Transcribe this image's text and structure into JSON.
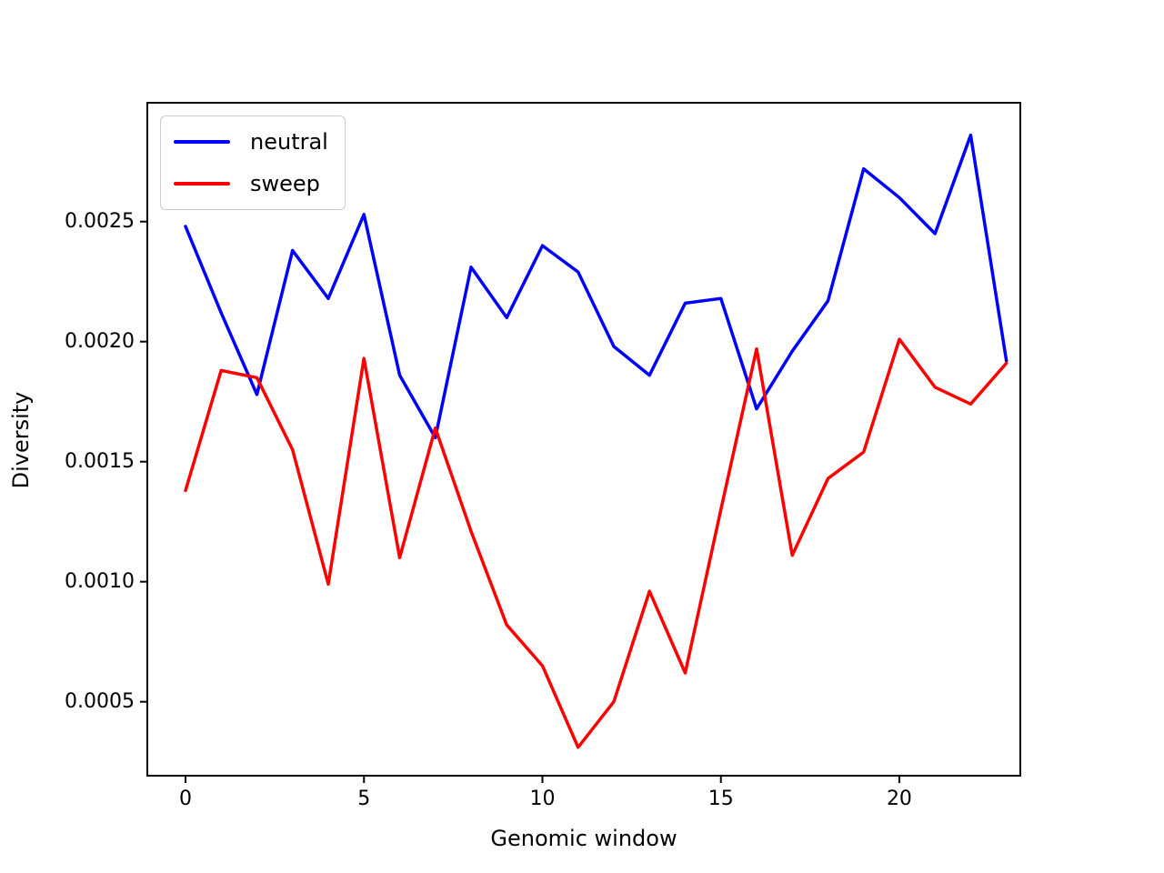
{
  "chart_data": {
    "type": "line",
    "title": "",
    "xlabel": "Genomic window",
    "ylabel": "Diversity",
    "x": [
      0,
      1,
      2,
      3,
      4,
      5,
      6,
      7,
      8,
      9,
      10,
      11,
      12,
      13,
      14,
      15,
      16,
      17,
      18,
      19,
      20,
      21,
      22,
      23
    ],
    "series": [
      {
        "name": "neutral",
        "color": "#0000ff",
        "values": [
          0.00248,
          0.00212,
          0.00178,
          0.00238,
          0.00218,
          0.00253,
          0.00186,
          0.0016,
          0.00231,
          0.0021,
          0.0024,
          0.00229,
          0.00198,
          0.00186,
          0.00216,
          0.00218,
          0.00172,
          0.00196,
          0.00217,
          0.00272,
          0.0026,
          0.00245,
          0.00286,
          0.00192
        ]
      },
      {
        "name": "sweep",
        "color": "#ff0000",
        "values": [
          0.00138,
          0.00188,
          0.00185,
          0.00155,
          0.00099,
          0.00193,
          0.0011,
          0.00164,
          0.00121,
          0.00082,
          0.00065,
          0.00031,
          0.0005,
          0.00096,
          0.00062,
          0.0013,
          0.00197,
          0.00111,
          0.00143,
          0.00154,
          0.00201,
          0.00181,
          0.00174,
          0.00191
        ]
      }
    ],
    "xticks": [
      0,
      5,
      10,
      15,
      20
    ],
    "xtick_labels": [
      "0",
      "5",
      "10",
      "15",
      "20"
    ],
    "yticks": [
      0.0005,
      0.001,
      0.0015,
      0.002,
      0.0025
    ],
    "ytick_labels": [
      "0.0005",
      "0.0010",
      "0.0015",
      "0.0020",
      "0.0025"
    ],
    "xlim": [
      -1.07,
      23.39
    ],
    "ylim": [
      0.000192,
      0.002995
    ],
    "grid": false,
    "legend": {
      "position": "upper left",
      "entries": [
        "neutral",
        "sweep"
      ]
    },
    "axis_color": "#000000",
    "background_color": "#ffffff"
  }
}
